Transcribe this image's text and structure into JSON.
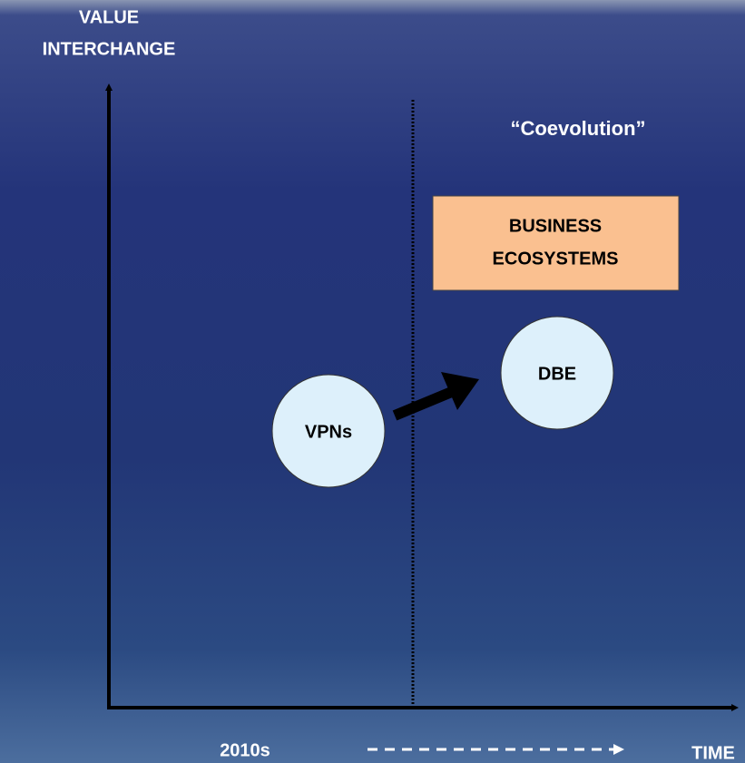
{
  "y_axis_label": [
    "VALUE",
    "INTERCHANGE"
  ],
  "x_axis_label": "TIME",
  "era_label": "2010s",
  "phase_label": "“Coevolution”",
  "box": [
    "BUSINESS",
    "ECOSYSTEMS"
  ],
  "nodes": [
    {
      "label": "VPNs"
    },
    {
      "label": "DBE"
    }
  ]
}
